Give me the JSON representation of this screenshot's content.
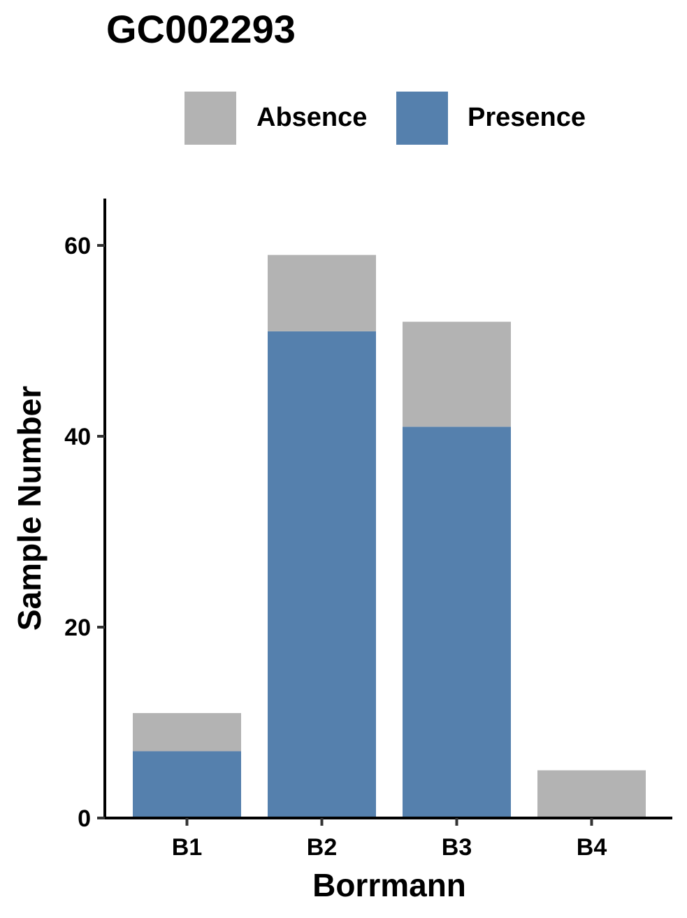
{
  "chart_data": {
    "type": "bar",
    "stacked": true,
    "title": "GC002293",
    "xlabel": "Borrmann",
    "ylabel": "Sample Number",
    "categories": [
      "B1",
      "B2",
      "B3",
      "B4"
    ],
    "series": [
      {
        "name": "Presence",
        "color": "#5580ad",
        "values": [
          7,
          51,
          41,
          0
        ]
      },
      {
        "name": "Absence",
        "color": "#b3b3b3",
        "values": [
          4,
          8,
          11,
          5
        ]
      }
    ],
    "ylim": [
      0,
      65
    ],
    "yticks": [
      0,
      20,
      40,
      60
    ],
    "legend": {
      "position": "top",
      "order": [
        "Absence",
        "Presence"
      ]
    },
    "grid": false
  }
}
